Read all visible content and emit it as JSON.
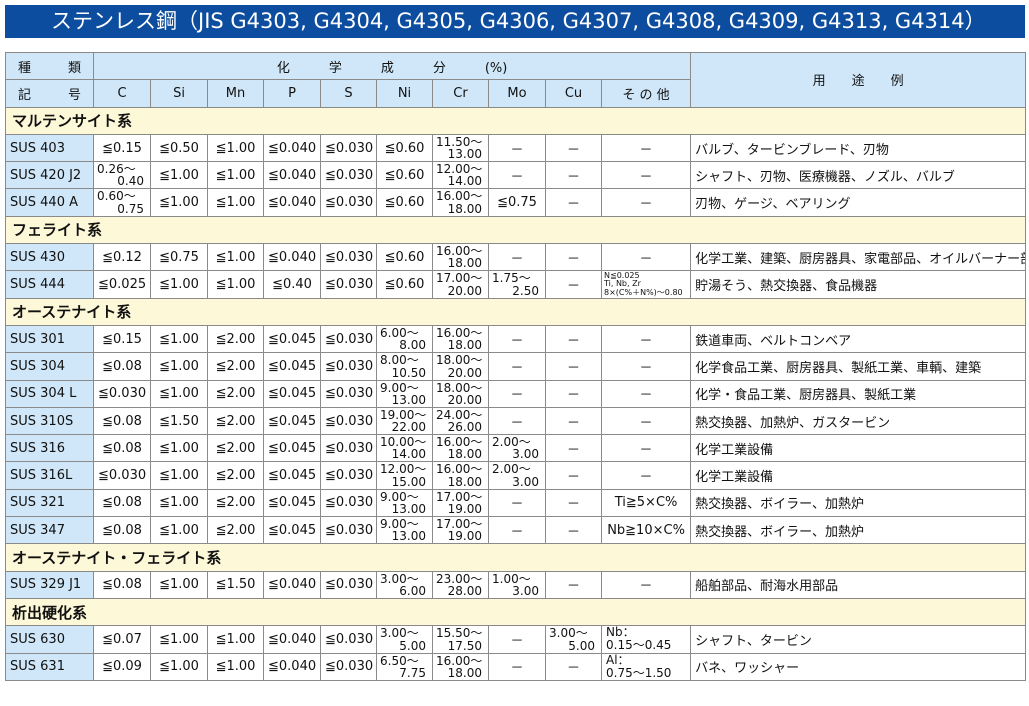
{
  "title": "ステンレス鋼（JIS G4303, G4304, G4305, G4306, G4307, G4308, G4309, G4313, G4314）",
  "header": {
    "type_label": [
      "種",
      "類"
    ],
    "symbol_label": [
      "記",
      "号"
    ],
    "chem_label": "化　　　学　　　成　　　分　　　(%)",
    "columns": [
      "C",
      "Si",
      "Mn",
      "P",
      "S",
      "Ni",
      "Cr",
      "Mo",
      "Cu",
      "そ の 他"
    ],
    "usage_label": "用　　途　　例"
  },
  "groups": [
    {
      "name": "マルテンサイト系",
      "rows": [
        {
          "grade": "SUS 403",
          "v": [
            "≦0.15",
            "≦0.50",
            "≦1.00",
            "≦0.040",
            "≦0.030",
            "≦0.60",
            [
              "11.50～",
              "13.00"
            ],
            "－",
            "－",
            "－"
          ],
          "use": "バルブ、タービンブレード、刃物"
        },
        {
          "grade": "SUS 420 J2",
          "v": [
            [
              "0.26～",
              "0.40"
            ],
            "≦1.00",
            "≦1.00",
            "≦0.040",
            "≦0.030",
            "≦0.60",
            [
              "12.00～",
              "14.00"
            ],
            "－",
            "－",
            "－"
          ],
          "use": "シャフト、刃物、医療機器、ノズル、バルブ"
        },
        {
          "grade": "SUS 440 A",
          "v": [
            [
              "0.60～",
              "0.75"
            ],
            "≦1.00",
            "≦1.00",
            "≦0.040",
            "≦0.030",
            "≦0.60",
            [
              "16.00～",
              "18.00"
            ],
            "≦0.75",
            "－",
            "－"
          ],
          "use": "刃物、ゲージ、ベアリング"
        }
      ]
    },
    {
      "name": "フェライト系",
      "rows": [
        {
          "grade": "SUS 430",
          "v": [
            "≦0.12",
            "≦0.75",
            "≦1.00",
            "≦0.040",
            "≦0.030",
            "≦0.60",
            [
              "16.00～",
              "18.00"
            ],
            "－",
            "－",
            "－"
          ],
          "use": "化学工業、建築、厨房器具、家電部品、オイルバーナー部品"
        },
        {
          "grade": "SUS 444",
          "v": [
            "≦0.025",
            "≦1.00",
            "≦1.00",
            "≦0.40",
            "≦0.030",
            "≦0.60",
            [
              "17.00～",
              "20.00"
            ],
            [
              "1.75～",
              "2.50"
            ],
            "－",
            {
              "small": [
                "N≦0.025",
                "Ti, Nb, Zr",
                "8×(C%＋N%)～0.80"
              ]
            }
          ],
          "use": "貯湯そう、熱交換器、食品機器"
        }
      ]
    },
    {
      "name": "オーステナイト系",
      "rows": [
        {
          "grade": "SUS 301",
          "v": [
            "≦0.15",
            "≦1.00",
            "≦2.00",
            "≦0.045",
            "≦0.030",
            [
              "6.00～",
              "8.00"
            ],
            [
              "16.00～",
              "18.00"
            ],
            "－",
            "－",
            "－"
          ],
          "use": "鉄道車両、ベルトコンベア"
        },
        {
          "grade": "SUS 304",
          "v": [
            "≦0.08",
            "≦1.00",
            "≦2.00",
            "≦0.045",
            "≦0.030",
            [
              "8.00～",
              "10.50"
            ],
            [
              "18.00～",
              "20.00"
            ],
            "－",
            "－",
            "－"
          ],
          "use": "化学食品工業、厨房器具、製紙工業、車輌、建築"
        },
        {
          "grade": "SUS 304 L",
          "v": [
            "≦0.030",
            "≦1.00",
            "≦2.00",
            "≦0.045",
            "≦0.030",
            [
              "9.00～",
              "13.00"
            ],
            [
              "18.00～",
              "20.00"
            ],
            "－",
            "－",
            "－"
          ],
          "use": "化学・食品工業、厨房器具、製紙工業"
        },
        {
          "grade": "SUS 310S",
          "v": [
            "≦0.08",
            "≦1.50",
            "≦2.00",
            "≦0.045",
            "≦0.030",
            [
              "19.00～",
              "22.00"
            ],
            [
              "24.00～",
              "26.00"
            ],
            "－",
            "－",
            "－"
          ],
          "use": "熱交換器、加熱炉、ガスタービン"
        },
        {
          "grade": "SUS 316",
          "v": [
            "≦0.08",
            "≦1.00",
            "≦2.00",
            "≦0.045",
            "≦0.030",
            [
              "10.00～",
              "14.00"
            ],
            [
              "16.00～",
              "18.00"
            ],
            [
              "2.00～",
              "3.00"
            ],
            "－",
            "－"
          ],
          "use": "化学工業設備"
        },
        {
          "grade": "SUS 316L",
          "v": [
            "≦0.030",
            "≦1.00",
            "≦2.00",
            "≦0.045",
            "≦0.030",
            [
              "12.00～",
              "15.00"
            ],
            [
              "16.00～",
              "18.00"
            ],
            [
              "2.00～",
              "3.00"
            ],
            "－",
            "－"
          ],
          "use": "化学工業設備"
        },
        {
          "grade": "SUS 321",
          "v": [
            "≦0.08",
            "≦1.00",
            "≦2.00",
            "≦0.045",
            "≦0.030",
            [
              "9.00～",
              "13.00"
            ],
            [
              "17.00～",
              "19.00"
            ],
            "－",
            "－",
            "Ti≧5×C%"
          ],
          "use": "熱交換器、ボイラー、加熱炉"
        },
        {
          "grade": "SUS 347",
          "v": [
            "≦0.08",
            "≦1.00",
            "≦2.00",
            "≦0.045",
            "≦0.030",
            [
              "9.00～",
              "13.00"
            ],
            [
              "17.00～",
              "19.00"
            ],
            "－",
            "－",
            "Nb≧10×C%"
          ],
          "use": "熱交換器、ボイラー、加熱炉"
        }
      ]
    },
    {
      "name": "オーステナイト・フェライト系",
      "rows": [
        {
          "grade": "SUS 329 J1",
          "v": [
            "≦0.08",
            "≦1.00",
            "≦1.50",
            "≦0.040",
            "≦0.030",
            [
              "3.00～",
              "6.00"
            ],
            [
              "23.00～",
              "28.00"
            ],
            [
              "1.00～",
              "3.00"
            ],
            "－",
            "－"
          ],
          "use": "船舶部品、耐海水用部品"
        }
      ]
    },
    {
      "name": "析出硬化系",
      "rows": [
        {
          "grade": "SUS 630",
          "v": [
            "≦0.07",
            "≦1.00",
            "≦1.00",
            "≦0.040",
            "≦0.030",
            [
              "3.00～",
              "5.00"
            ],
            [
              "15.50～",
              "17.50"
            ],
            "－",
            [
              "3.00～",
              "5.00"
            ],
            {
              "lines": [
                "Nb：",
                "0.15～0.45"
              ]
            }
          ],
          "use": "シャフト、タービン"
        },
        {
          "grade": "SUS 631",
          "v": [
            "≦0.09",
            "≦1.00",
            "≦1.00",
            "≦0.040",
            "≦0.030",
            [
              "6.50～",
              "7.75"
            ],
            [
              "16.00～",
              "18.00"
            ],
            "－",
            "－",
            {
              "lines": [
                "Al：",
                "0.75～1.50"
              ]
            }
          ],
          "use": "バネ、ワッシャー"
        }
      ]
    }
  ]
}
